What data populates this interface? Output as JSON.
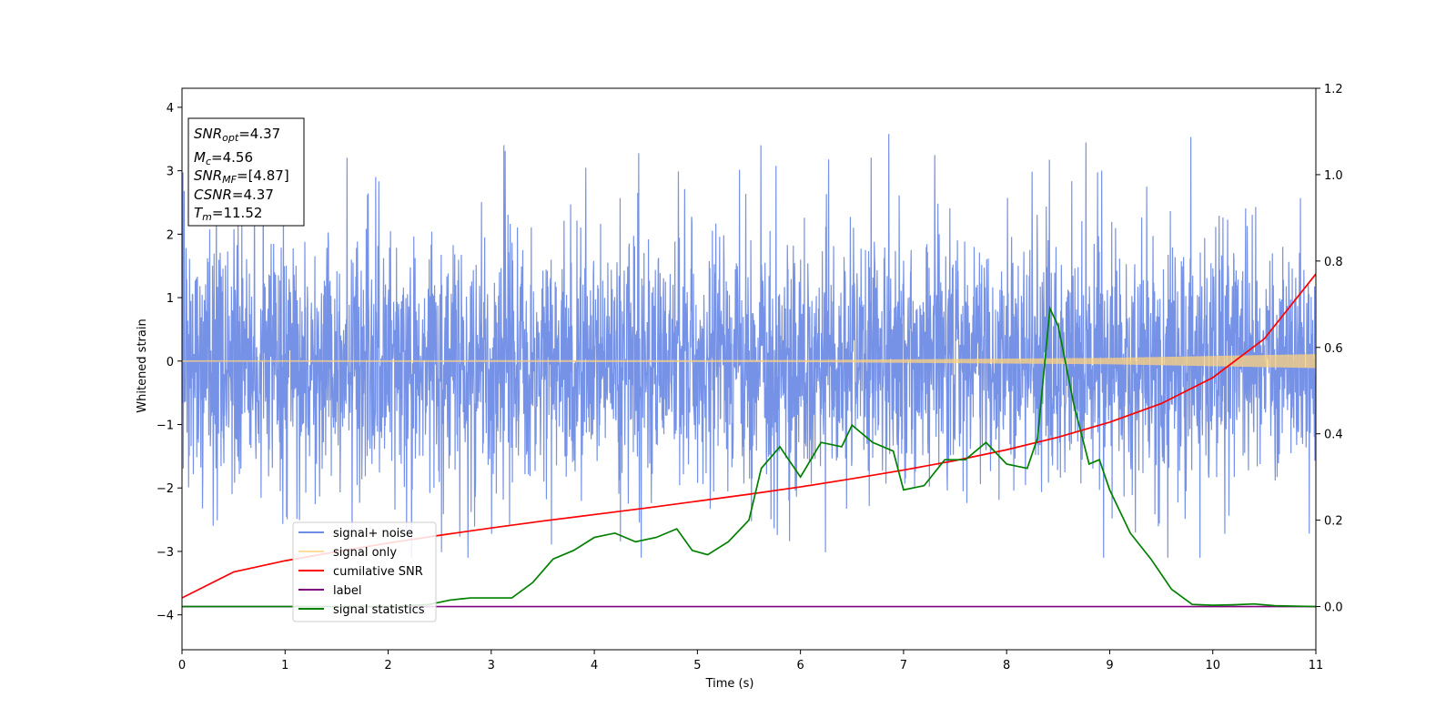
{
  "chart_data": {
    "type": "line",
    "xlabel": "Time (s)",
    "ylabel": "Whitened strain",
    "xlim": [
      0,
      11
    ],
    "ylim_left": [
      -4.55,
      4.3
    ],
    "ylim_right": [
      -0.1,
      1.2
    ],
    "x_ticks": [
      0,
      1,
      2,
      3,
      4,
      5,
      6,
      7,
      8,
      9,
      10,
      11
    ],
    "y_ticks_left": [
      4,
      3,
      2,
      1,
      0,
      -1,
      -2,
      -3,
      -4
    ],
    "y_ticks_left_labels": [
      "4",
      "3",
      "2",
      "1",
      "0",
      "−1",
      "−2",
      "−3",
      "−4"
    ],
    "y_ticks_right": [
      1.2,
      1.0,
      0.8,
      0.6,
      0.4,
      0.2,
      0.0
    ],
    "y_ticks_right_labels": [
      "1.2",
      "1.0",
      "0.8",
      "0.6",
      "0.4",
      "0.2",
      "0.0"
    ],
    "legend_placement": "lower-left",
    "series": [
      {
        "name": "signal+ noise",
        "color": "#6f8ce6",
        "axis": "left",
        "kind": "noise",
        "envelope": {
          "x": [
            0,
            11
          ],
          "y_mean": 0,
          "spread": 1.0
        }
      },
      {
        "name": "signal only",
        "color": "#ffd27f",
        "axis": "left",
        "kind": "chirp",
        "amplitude": {
          "x": [
            0,
            6,
            9,
            11
          ],
          "y": [
            0.01,
            0.015,
            0.05,
            0.11
          ]
        }
      },
      {
        "name": "cumilative SNR",
        "color": "#ff0000",
        "axis": "right",
        "x": [
          0,
          0.5,
          1,
          1.5,
          2,
          2.5,
          3,
          3.5,
          4,
          4.5,
          5,
          5.5,
          6,
          6.5,
          7,
          7.5,
          8,
          8.5,
          9,
          9.5,
          10,
          10.5,
          11
        ],
        "y": [
          0.02,
          0.08,
          0.106,
          0.127,
          0.147,
          0.165,
          0.182,
          0.198,
          0.213,
          0.228,
          0.244,
          0.26,
          0.277,
          0.296,
          0.316,
          0.338,
          0.363,
          0.392,
          0.427,
          0.47,
          0.53,
          0.62,
          0.77
        ]
      },
      {
        "name": "label",
        "color": "#800080",
        "axis": "right",
        "x": [
          0,
          11
        ],
        "y": [
          0.0,
          0.0
        ]
      },
      {
        "name": "signal statistics",
        "color": "#008000",
        "axis": "right",
        "x": [
          0,
          1,
          2,
          2.4,
          2.6,
          2.8,
          3.0,
          3.2,
          3.4,
          3.6,
          3.8,
          4.0,
          4.2,
          4.4,
          4.6,
          4.8,
          4.95,
          5.1,
          5.3,
          5.5,
          5.62,
          5.8,
          6.0,
          6.2,
          6.4,
          6.5,
          6.7,
          6.9,
          7.0,
          7.2,
          7.4,
          7.6,
          7.8,
          8.0,
          8.2,
          8.3,
          8.42,
          8.5,
          8.65,
          8.8,
          8.9,
          9.0,
          9.2,
          9.4,
          9.6,
          9.8,
          10.0,
          10.2,
          10.4,
          10.6,
          11.0
        ],
        "y": [
          0.0,
          0.0,
          0.0,
          0.005,
          0.015,
          0.02,
          0.02,
          0.02,
          0.055,
          0.11,
          0.13,
          0.16,
          0.17,
          0.15,
          0.16,
          0.18,
          0.13,
          0.12,
          0.15,
          0.2,
          0.32,
          0.37,
          0.3,
          0.38,
          0.37,
          0.42,
          0.38,
          0.36,
          0.27,
          0.28,
          0.34,
          0.34,
          0.38,
          0.33,
          0.32,
          0.39,
          0.69,
          0.65,
          0.47,
          0.33,
          0.34,
          0.27,
          0.17,
          0.11,
          0.04,
          0.005,
          0.003,
          0.004,
          0.006,
          0.002,
          0.0
        ]
      }
    ],
    "annotations": [
      {
        "base": "SNR",
        "sub": "opt",
        "value": "=4.37"
      },
      {
        "base": "M",
        "sub": "c",
        "value": "=4.56"
      },
      {
        "base": "SNR",
        "sub": "MF",
        "value": "=[4.87]"
      },
      {
        "base": "CSNR",
        "sub": "",
        "value": "=4.37"
      },
      {
        "base": "T",
        "sub": "m",
        "value": "=11.52"
      }
    ]
  }
}
